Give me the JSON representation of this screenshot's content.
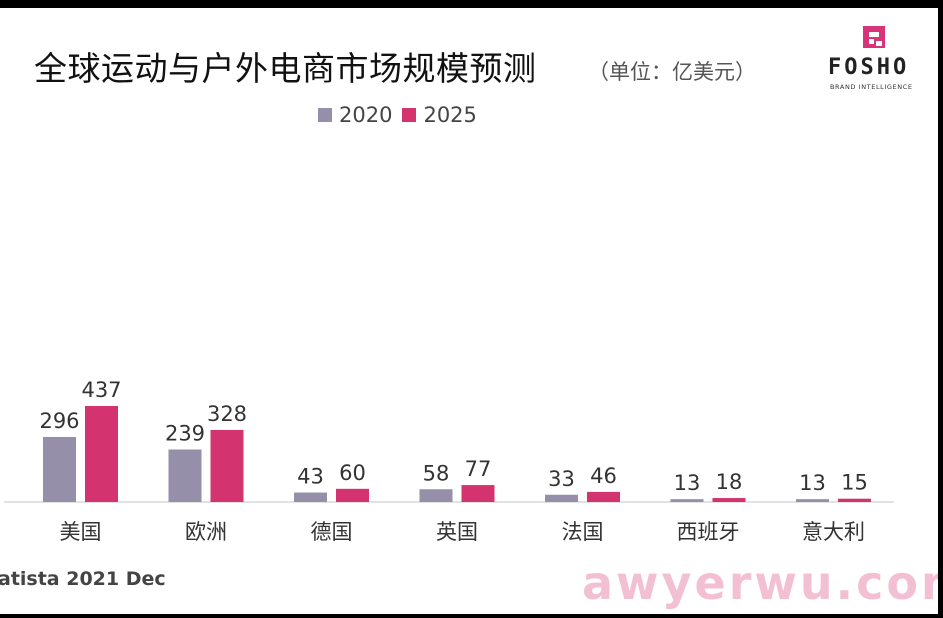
{
  "title": "全球运动与户外电商市场规模预测",
  "unit": "（单位：亿美元）",
  "logo": {
    "brand": "FOSHO",
    "tagline": "BRAND INTELLIGENCE"
  },
  "source": "atista 2021 Dec",
  "watermark": "awyerwu.com",
  "colors": {
    "series_2020": "#958fa9",
    "series_2025": "#d3336f",
    "axis": "#d9d9d9"
  },
  "chart_data": {
    "type": "bar",
    "categories": [
      "美国",
      "欧洲",
      "德国",
      "英国",
      "法国",
      "西班牙",
      "意大利"
    ],
    "series": [
      {
        "name": "2020",
        "values": [
          296,
          239,
          43,
          58,
          33,
          13,
          13
        ]
      },
      {
        "name": "2025",
        "values": [
          437,
          328,
          60,
          77,
          46,
          18,
          15
        ]
      }
    ],
    "legend": "top",
    "grid": false,
    "ylim": [
      0,
      437
    ]
  }
}
